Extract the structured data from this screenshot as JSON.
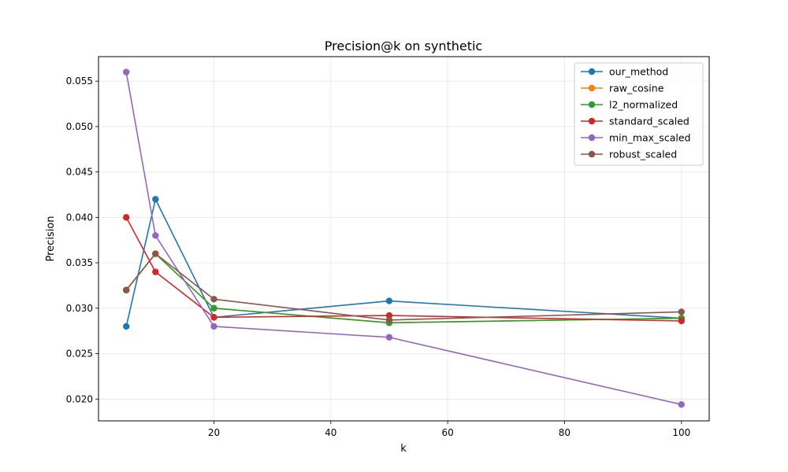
{
  "chart_data": {
    "type": "line",
    "title": "Precision@k on synthetic",
    "xlabel": "k",
    "ylabel": "Precision",
    "xlim": [
      0.25,
      104.75
    ],
    "ylim": [
      0.0176,
      0.0577
    ],
    "xticks": [
      20,
      40,
      60,
      80,
      100
    ],
    "yticks": [
      0.02,
      0.025,
      0.03,
      0.035,
      0.04,
      0.045,
      0.05,
      0.055
    ],
    "ytick_labels": [
      "0.020",
      "0.025",
      "0.030",
      "0.035",
      "0.040",
      "0.045",
      "0.050",
      "0.055"
    ],
    "grid": true,
    "legend_position": "top-right",
    "x": [
      5,
      10,
      20,
      50,
      100
    ],
    "series": [
      {
        "name": "our_method",
        "color": "#1f77b4",
        "values": [
          0.028,
          0.042,
          0.029,
          0.0308,
          0.0289
        ]
      },
      {
        "name": "raw_cosine",
        "color": "#ff7f0e",
        "values": [
          0.032,
          0.036,
          0.03,
          0.0284,
          0.0289
        ]
      },
      {
        "name": "l2_normalized",
        "color": "#2ca02c",
        "values": [
          0.032,
          0.036,
          0.03,
          0.0284,
          0.0289
        ]
      },
      {
        "name": "standard_scaled",
        "color": "#d62728",
        "values": [
          0.04,
          0.034,
          0.029,
          0.0292,
          0.0286
        ]
      },
      {
        "name": "min_max_scaled",
        "color": "#9467bd",
        "values": [
          0.056,
          0.038,
          0.028,
          0.0268,
          0.0194
        ]
      },
      {
        "name": "robust_scaled",
        "color": "#8c564b",
        "values": [
          0.032,
          0.036,
          0.031,
          0.0287,
          0.0296
        ]
      }
    ]
  }
}
